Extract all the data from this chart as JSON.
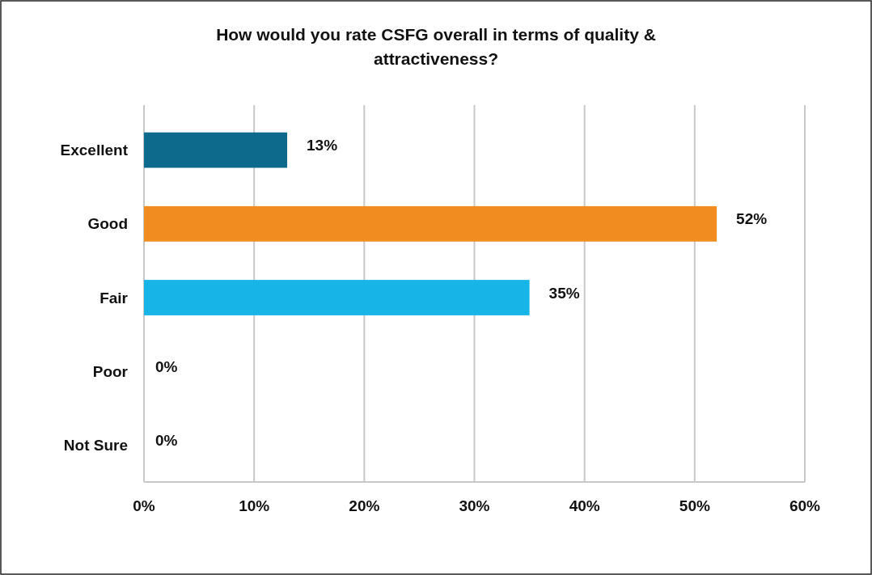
{
  "chart_data": {
    "type": "bar",
    "orientation": "horizontal",
    "title": "How would you rate CSFG overall in terms of quality & attractiveness?",
    "categories": [
      "Excellent",
      "Good",
      "Fair",
      "Poor",
      "Not Sure"
    ],
    "values": [
      13,
      52,
      35,
      0,
      0
    ],
    "colors": [
      "#0e6a8c",
      "#f08c20",
      "#17b4e8",
      "#404040",
      "#0d3a4a"
    ],
    "xlim": [
      0,
      60
    ],
    "xticks": [
      {
        "value": 0,
        "label": "0%"
      },
      {
        "value": 10,
        "label": "10%"
      },
      {
        "value": 20,
        "label": "20%"
      },
      {
        "value": 30,
        "label": "30%"
      },
      {
        "value": 40,
        "label": "40%"
      },
      {
        "value": 50,
        "label": "50%"
      },
      {
        "value": 60,
        "label": "60%"
      }
    ],
    "value_labels": [
      "13%",
      "52%",
      "35%",
      "0%",
      "0%"
    ],
    "grid": "x"
  }
}
